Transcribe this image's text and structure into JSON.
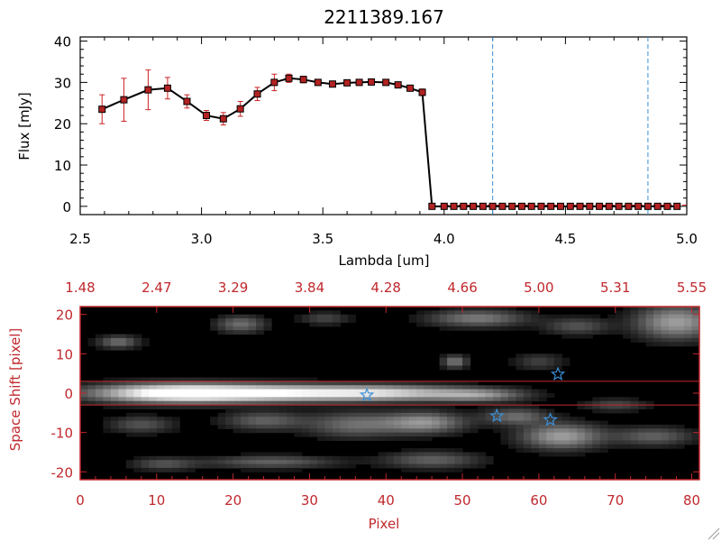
{
  "chart_data": [
    {
      "type": "line",
      "title": "2211389.167",
      "xlabel": "Lambda [um]",
      "ylabel": "Flux [mJy]",
      "xlim": [
        2.5,
        5.0
      ],
      "ylim": [
        -2,
        41
      ],
      "x_ticks": [
        "2.5",
        "3.0",
        "3.5",
        "4.0",
        "4.5",
        "5.0"
      ],
      "x_tick_values": [
        2.5,
        3.0,
        3.5,
        4.0,
        4.5,
        5.0
      ],
      "y_ticks": [
        "0",
        "10",
        "20",
        "30",
        "40"
      ],
      "y_tick_values": [
        0,
        10,
        20,
        30,
        40
      ],
      "line_color": "#000000",
      "marker_color": "#b22222",
      "error_color": "#cc2222",
      "vlines": [
        4.2,
        4.84
      ],
      "vline_color": "#3a8fd8",
      "series": [
        {
          "x": [
            2.59,
            2.68,
            2.78,
            2.86,
            2.94,
            3.02,
            3.09,
            3.16,
            3.23,
            3.3,
            3.36,
            3.42,
            3.48,
            3.54,
            3.6,
            3.65,
            3.7,
            3.76,
            3.81,
            3.86,
            3.91,
            3.95,
            4.0,
            4.04,
            4.08,
            4.12,
            4.16,
            4.2,
            4.24,
            4.28,
            4.32,
            4.36,
            4.4,
            4.44,
            4.48,
            4.52,
            4.56,
            4.6,
            4.64,
            4.68,
            4.72,
            4.76,
            4.8,
            4.84,
            4.88,
            4.92,
            4.96
          ],
          "y": [
            23.5,
            25.8,
            28.2,
            28.6,
            25.4,
            22.0,
            21.2,
            23.6,
            27.2,
            30.0,
            31.0,
            30.7,
            30.0,
            29.6,
            29.9,
            30.0,
            30.1,
            30.0,
            29.4,
            28.6,
            27.6,
            0,
            0,
            0,
            0,
            0,
            0,
            0,
            0,
            0,
            0,
            0,
            0,
            0,
            0,
            0,
            0,
            0,
            0,
            0,
            0,
            0,
            0,
            0,
            0,
            0,
            0
          ],
          "yerr": [
            3.5,
            5.2,
            4.8,
            2.6,
            1.6,
            1.2,
            1.5,
            1.8,
            1.6,
            2.0,
            1.0,
            0.8,
            0.7,
            0.5,
            0.5,
            0.5,
            0.5,
            0.6,
            0.6,
            0.6,
            0.8,
            0,
            0,
            0,
            0,
            0,
            0,
            0,
            0,
            0,
            0,
            0,
            0,
            0,
            0,
            0,
            0,
            0,
            0,
            0,
            0,
            0,
            0,
            0,
            0,
            0,
            0
          ]
        }
      ]
    },
    {
      "type": "heatmap",
      "xlabel": "Pixel",
      "ylabel": "Space Shift [pixel]",
      "xlim": [
        0,
        81
      ],
      "ylim": [
        -22,
        22
      ],
      "x_ticks": [
        "0",
        "10",
        "20",
        "30",
        "40",
        "50",
        "60",
        "70",
        "80"
      ],
      "x_tick_values": [
        0,
        10,
        20,
        30,
        40,
        50,
        60,
        70,
        80
      ],
      "y_ticks": [
        "20",
        "10",
        "0",
        "-10",
        "-20"
      ],
      "y_tick_values": [
        20,
        10,
        0,
        -10,
        -20
      ],
      "top_ticks": [
        "1.48",
        "2.47",
        "3.29",
        "3.84",
        "4.28",
        "4.66",
        "5.00",
        "5.31",
        "5.55"
      ],
      "axis_color": "#c0282d",
      "hlines": [
        3,
        -3
      ],
      "star_color": "#3a8fd8",
      "stars": [
        {
          "x": 37.5,
          "y": -0.5
        },
        {
          "x": 54.5,
          "y": -5.8
        },
        {
          "x": 61.5,
          "y": -6.8
        },
        {
          "x": 62.5,
          "y": 4.8
        }
      ]
    }
  ]
}
